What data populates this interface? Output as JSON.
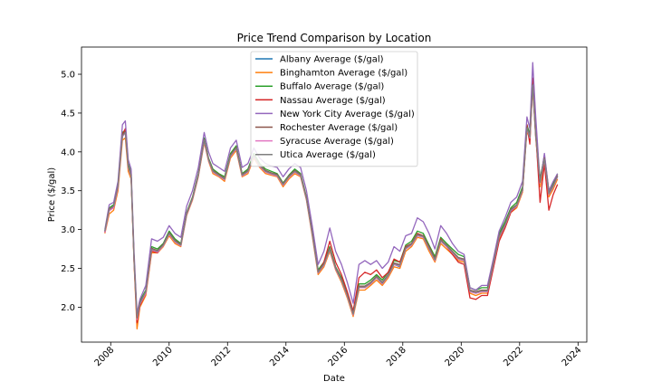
{
  "chart_data": {
    "type": "line",
    "title": "Price Trend Comparison by Location",
    "xlabel": "Date",
    "ylabel": "Price ($/gal)",
    "xlim": [
      2007.0,
      2024.3
    ],
    "ylim": [
      1.55,
      5.35
    ],
    "x_ticks": [
      2008,
      2010,
      2012,
      2014,
      2016,
      2018,
      2020,
      2022,
      2024
    ],
    "y_ticks": [
      2.0,
      2.5,
      3.0,
      3.5,
      4.0,
      4.5,
      5.0
    ],
    "grid": false,
    "legend_position": "top-center",
    "x": [
      2007.8,
      2007.95,
      2008.1,
      2008.25,
      2008.4,
      2008.5,
      2008.6,
      2008.7,
      2008.8,
      2008.9,
      2009.0,
      2009.2,
      2009.4,
      2009.6,
      2009.8,
      2010.0,
      2010.2,
      2010.4,
      2010.6,
      2010.8,
      2011.0,
      2011.2,
      2011.35,
      2011.5,
      2011.7,
      2011.9,
      2012.1,
      2012.3,
      2012.5,
      2012.7,
      2012.9,
      2013.1,
      2013.3,
      2013.5,
      2013.7,
      2013.9,
      2014.1,
      2014.3,
      2014.5,
      2014.7,
      2014.9,
      2015.1,
      2015.3,
      2015.5,
      2015.7,
      2015.9,
      2016.1,
      2016.3,
      2016.5,
      2016.7,
      2016.9,
      2017.1,
      2017.3,
      2017.5,
      2017.7,
      2017.9,
      2018.1,
      2018.3,
      2018.5,
      2018.7,
      2018.9,
      2019.1,
      2019.3,
      2019.5,
      2019.7,
      2019.9,
      2020.1,
      2020.3,
      2020.5,
      2020.7,
      2020.9,
      2021.1,
      2021.3,
      2021.5,
      2021.7,
      2021.9,
      2022.1,
      2022.25,
      2022.35,
      2022.45,
      2022.55,
      2022.7,
      2022.85,
      2023.0,
      2023.15,
      2023.3
    ],
    "series": [
      {
        "name": "Albany Average ($/gal)",
        "color": "#1f77b4",
        "values": [
          2.98,
          3.25,
          3.3,
          3.55,
          4.2,
          4.25,
          3.8,
          3.7,
          2.6,
          1.85,
          2.05,
          2.2,
          2.75,
          2.72,
          2.8,
          2.95,
          2.85,
          2.8,
          3.2,
          3.4,
          3.7,
          4.15,
          3.9,
          3.75,
          3.7,
          3.65,
          3.95,
          4.05,
          3.7,
          3.75,
          3.95,
          3.82,
          3.75,
          3.72,
          3.7,
          3.58,
          3.68,
          3.75,
          3.7,
          3.4,
          2.95,
          2.45,
          2.55,
          2.75,
          2.5,
          2.35,
          2.15,
          1.9,
          2.25,
          2.25,
          2.3,
          2.38,
          2.3,
          2.4,
          2.55,
          2.52,
          2.75,
          2.8,
          2.92,
          2.9,
          2.75,
          2.6,
          2.85,
          2.78,
          2.7,
          2.62,
          2.6,
          2.2,
          2.18,
          2.2,
          2.2,
          2.55,
          2.9,
          3.05,
          3.25,
          3.3,
          3.5,
          4.3,
          4.2,
          4.85,
          4.2,
          3.6,
          3.9,
          3.45,
          3.55,
          3.68
        ]
      },
      {
        "name": "Binghamton Average ($/gal)",
        "color": "#ff7f0e",
        "values": [
          2.95,
          3.2,
          3.25,
          3.5,
          4.15,
          4.18,
          3.75,
          3.65,
          2.55,
          1.72,
          2.0,
          2.15,
          2.7,
          2.7,
          2.78,
          2.92,
          2.82,
          2.78,
          3.18,
          3.38,
          3.68,
          4.12,
          3.88,
          3.72,
          3.68,
          3.62,
          3.92,
          4.02,
          3.68,
          3.72,
          3.92,
          3.8,
          3.72,
          3.7,
          3.68,
          3.55,
          3.65,
          3.72,
          3.68,
          3.38,
          2.92,
          2.42,
          2.52,
          2.72,
          2.48,
          2.32,
          2.12,
          1.88,
          2.22,
          2.22,
          2.28,
          2.35,
          2.28,
          2.38,
          2.52,
          2.5,
          2.72,
          2.78,
          2.9,
          2.88,
          2.72,
          2.58,
          2.82,
          2.75,
          2.68,
          2.6,
          2.58,
          2.18,
          2.15,
          2.18,
          2.18,
          2.52,
          2.88,
          3.02,
          3.22,
          3.28,
          3.48,
          4.28,
          4.15,
          4.82,
          4.18,
          3.55,
          3.85,
          3.42,
          3.52,
          3.65
        ]
      },
      {
        "name": "Buffalo Average ($/gal)",
        "color": "#2ca02c",
        "values": [
          2.97,
          3.28,
          3.32,
          3.58,
          4.25,
          4.28,
          3.85,
          3.72,
          2.62,
          1.88,
          2.08,
          2.22,
          2.78,
          2.75,
          2.82,
          2.98,
          2.88,
          2.82,
          3.22,
          3.42,
          3.72,
          4.18,
          3.92,
          3.78,
          3.72,
          3.68,
          3.98,
          4.08,
          3.72,
          3.78,
          3.98,
          3.85,
          3.78,
          3.75,
          3.72,
          3.6,
          3.7,
          3.78,
          3.72,
          3.42,
          2.98,
          2.48,
          2.58,
          2.78,
          2.52,
          2.38,
          2.18,
          1.95,
          2.3,
          2.3,
          2.35,
          2.42,
          2.35,
          2.45,
          2.6,
          2.58,
          2.8,
          2.85,
          2.98,
          2.95,
          2.8,
          2.65,
          2.9,
          2.82,
          2.75,
          2.68,
          2.65,
          2.25,
          2.22,
          2.25,
          2.25,
          2.6,
          2.95,
          3.1,
          3.28,
          3.35,
          3.55,
          4.35,
          4.22,
          4.9,
          4.25,
          3.65,
          3.95,
          3.5,
          3.6,
          3.72
        ]
      },
      {
        "name": "Nassau Average ($/gal)",
        "color": "#d62728",
        "values": [
          2.96,
          3.26,
          3.28,
          3.55,
          4.22,
          4.3,
          3.82,
          3.7,
          2.58,
          1.8,
          2.02,
          2.18,
          2.72,
          2.7,
          2.8,
          2.95,
          2.85,
          2.8,
          3.2,
          3.4,
          3.7,
          4.15,
          3.9,
          3.75,
          3.7,
          3.65,
          3.95,
          4.05,
          3.7,
          3.75,
          3.95,
          3.82,
          3.75,
          3.72,
          3.7,
          3.58,
          3.68,
          3.75,
          3.7,
          3.4,
          2.95,
          2.45,
          2.58,
          2.85,
          2.58,
          2.42,
          2.2,
          1.95,
          2.38,
          2.45,
          2.42,
          2.48,
          2.38,
          2.45,
          2.62,
          2.58,
          2.78,
          2.82,
          2.95,
          2.92,
          2.78,
          2.62,
          2.88,
          2.78,
          2.68,
          2.58,
          2.55,
          2.12,
          2.1,
          2.15,
          2.15,
          2.5,
          2.85,
          3.02,
          3.22,
          3.3,
          3.5,
          4.35,
          4.1,
          4.95,
          4.25,
          3.35,
          3.85,
          3.25,
          3.45,
          3.58
        ]
      },
      {
        "name": "New York City Average ($/gal)",
        "color": "#9467bd",
        "values": [
          3.0,
          3.32,
          3.35,
          3.62,
          4.35,
          4.4,
          3.9,
          3.78,
          2.7,
          1.92,
          2.1,
          2.28,
          2.88,
          2.85,
          2.9,
          3.05,
          2.95,
          2.9,
          3.3,
          3.5,
          3.8,
          4.25,
          4.0,
          3.85,
          3.8,
          3.75,
          4.05,
          4.15,
          3.8,
          3.85,
          4.05,
          3.92,
          3.85,
          3.82,
          3.8,
          3.68,
          3.78,
          3.85,
          3.8,
          3.5,
          3.05,
          2.55,
          2.72,
          3.02,
          2.72,
          2.55,
          2.32,
          2.05,
          2.55,
          2.6,
          2.55,
          2.6,
          2.5,
          2.58,
          2.78,
          2.72,
          2.92,
          2.95,
          3.15,
          3.1,
          2.95,
          2.75,
          3.05,
          2.95,
          2.82,
          2.72,
          2.68,
          2.25,
          2.22,
          2.28,
          2.28,
          2.62,
          2.98,
          3.15,
          3.35,
          3.42,
          3.62,
          4.45,
          4.3,
          5.15,
          4.45,
          3.6,
          3.98,
          3.5,
          3.62,
          3.72
        ]
      },
      {
        "name": "Rochester Average ($/gal)",
        "color": "#8c564b",
        "values": [
          2.97,
          3.27,
          3.3,
          3.56,
          4.22,
          4.26,
          3.82,
          3.7,
          2.6,
          1.86,
          2.06,
          2.2,
          2.76,
          2.73,
          2.81,
          2.96,
          2.86,
          2.81,
          3.21,
          3.41,
          3.71,
          4.16,
          3.91,
          3.76,
          3.71,
          3.66,
          3.96,
          4.06,
          3.71,
          3.76,
          3.96,
          3.83,
          3.76,
          3.73,
          3.71,
          3.59,
          3.69,
          3.76,
          3.71,
          3.41,
          2.96,
          2.46,
          2.56,
          2.76,
          2.51,
          2.36,
          2.16,
          1.92,
          2.27,
          2.27,
          2.32,
          2.4,
          2.32,
          2.42,
          2.57,
          2.55,
          2.77,
          2.82,
          2.94,
          2.92,
          2.77,
          2.62,
          2.87,
          2.8,
          2.72,
          2.64,
          2.62,
          2.22,
          2.2,
          2.22,
          2.22,
          2.57,
          2.92,
          3.07,
          3.26,
          3.32,
          3.52,
          4.32,
          4.2,
          4.87,
          4.22,
          3.62,
          3.92,
          3.47,
          3.57,
          3.7
        ]
      },
      {
        "name": "Syracuse Average ($/gal)",
        "color": "#e377c2",
        "values": [
          2.96,
          3.24,
          3.28,
          3.54,
          4.2,
          4.24,
          3.8,
          3.68,
          2.58,
          1.84,
          2.04,
          2.18,
          2.74,
          2.71,
          2.79,
          2.94,
          2.84,
          2.79,
          3.19,
          3.39,
          3.69,
          4.14,
          3.89,
          3.74,
          3.69,
          3.64,
          3.94,
          4.04,
          3.69,
          3.74,
          3.94,
          3.81,
          3.74,
          3.71,
          3.69,
          3.57,
          3.67,
          3.74,
          3.69,
          3.39,
          2.94,
          2.44,
          2.54,
          2.74,
          2.49,
          2.34,
          2.14,
          1.9,
          2.25,
          2.25,
          2.3,
          2.38,
          2.3,
          2.4,
          2.55,
          2.53,
          2.75,
          2.8,
          2.92,
          2.9,
          2.75,
          2.6,
          2.85,
          2.78,
          2.7,
          2.62,
          2.6,
          2.2,
          2.18,
          2.2,
          2.2,
          2.55,
          2.9,
          3.05,
          3.24,
          3.3,
          3.5,
          4.3,
          4.18,
          4.85,
          4.2,
          3.6,
          3.9,
          3.45,
          3.55,
          3.68
        ]
      },
      {
        "name": "Utica Average ($/gal)",
        "color": "#7f7f7f",
        "values": [
          2.98,
          3.26,
          3.3,
          3.56,
          4.21,
          4.25,
          3.81,
          3.69,
          2.59,
          1.86,
          2.05,
          2.2,
          2.75,
          2.72,
          2.8,
          2.95,
          2.85,
          2.8,
          3.2,
          3.4,
          3.7,
          4.15,
          3.9,
          3.75,
          3.7,
          3.65,
          3.95,
          4.05,
          3.7,
          3.75,
          3.95,
          3.82,
          3.75,
          3.72,
          3.7,
          3.58,
          3.68,
          3.75,
          3.7,
          3.4,
          2.95,
          2.45,
          2.55,
          2.75,
          2.5,
          2.35,
          2.15,
          1.91,
          2.26,
          2.26,
          2.31,
          2.39,
          2.31,
          2.41,
          2.56,
          2.54,
          2.76,
          2.81,
          2.93,
          2.91,
          2.76,
          2.61,
          2.86,
          2.79,
          2.71,
          2.63,
          2.61,
          2.21,
          2.19,
          2.21,
          2.21,
          2.56,
          2.91,
          3.06,
          3.25,
          3.31,
          3.51,
          4.31,
          4.19,
          4.86,
          4.21,
          3.61,
          3.91,
          3.46,
          3.56,
          3.69
        ]
      }
    ]
  }
}
